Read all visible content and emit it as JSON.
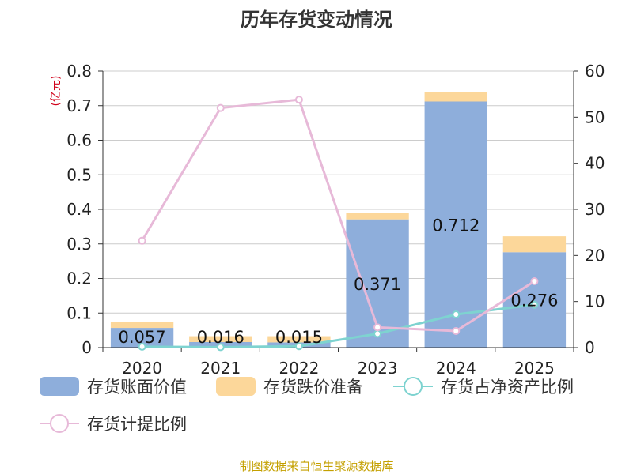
{
  "chart_data": {
    "type": "bar",
    "title": "历年存货变动情况",
    "categories": [
      "2020",
      "2021",
      "2022",
      "2023",
      "2024",
      "2025"
    ],
    "left_axis": {
      "unit_label": "(亿元)",
      "ylim": [
        0,
        0.8
      ],
      "ticks": [
        "0",
        "0.1",
        "0.2",
        "0.3",
        "0.4",
        "0.5",
        "0.6",
        "0.7",
        "0.8"
      ]
    },
    "right_axis": {
      "ylim": [
        0,
        60
      ],
      "ticks": [
        "0",
        "10",
        "20",
        "30",
        "40",
        "50",
        "60"
      ]
    },
    "series": [
      {
        "name": "存货账面价值",
        "kind": "bar",
        "axis": "left",
        "color": "#8eaedb",
        "values": [
          0.057,
          0.016,
          0.015,
          0.371,
          0.712,
          0.276
        ],
        "labels": [
          "0.057",
          "0.016",
          "0.015",
          "0.371",
          "0.712",
          "0.276"
        ]
      },
      {
        "name": "存货跌价准备",
        "kind": "bar",
        "axis": "left",
        "stacked": true,
        "color": "#fcd79a",
        "values": [
          0.018,
          0.017,
          0.018,
          0.018,
          0.028,
          0.046
        ]
      },
      {
        "name": "存货占净资产比例",
        "kind": "line",
        "axis": "right",
        "color": "#7ed3d0",
        "values": [
          0.2,
          0.1,
          0.3,
          3.0,
          7.2,
          9.3
        ]
      },
      {
        "name": "存货计提比例",
        "kind": "line",
        "axis": "right",
        "color": "#e7b9d8",
        "values": [
          23.2,
          52.0,
          53.8,
          4.4,
          3.6,
          14.4
        ]
      }
    ],
    "grid": true,
    "legend_position": "bottom",
    "source_text": "制图数据来自恒生聚源数据库"
  }
}
